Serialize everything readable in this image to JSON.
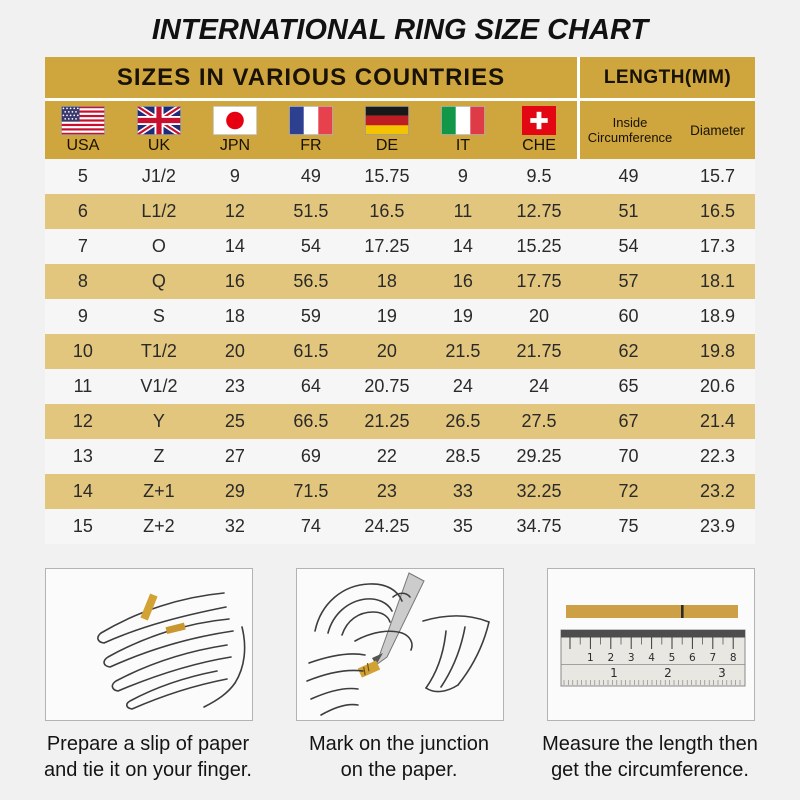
{
  "page": {
    "title": "INTERNATIONAL RING SIZE CHART"
  },
  "table": {
    "section_headers": {
      "left": "SIZES IN VARIOUS COUNTRIES",
      "right": "LENGTH(MM)"
    },
    "columns": [
      {
        "code": "USA",
        "flag": "usa-flag-icon"
      },
      {
        "code": "UK",
        "flag": "uk-flag-icon"
      },
      {
        "code": "JPN",
        "flag": "japan-flag-icon"
      },
      {
        "code": "FR",
        "flag": "france-flag-icon"
      },
      {
        "code": "DE",
        "flag": "germany-flag-icon"
      },
      {
        "code": "IT",
        "flag": "italy-flag-icon"
      },
      {
        "code": "CHE",
        "flag": "switzerland-flag-icon"
      }
    ],
    "length_columns": [
      "Inside Circumference",
      "Diameter"
    ],
    "rows": [
      [
        "5",
        "J1/2",
        "9",
        "49",
        "15.75",
        "9",
        "9.5",
        "49",
        "15.7"
      ],
      [
        "6",
        "L1/2",
        "12",
        "51.5",
        "16.5",
        "11",
        "12.75",
        "51",
        "16.5"
      ],
      [
        "7",
        "O",
        "14",
        "54",
        "17.25",
        "14",
        "15.25",
        "54",
        "17.3"
      ],
      [
        "8",
        "Q",
        "16",
        "56.5",
        "18",
        "16",
        "17.75",
        "57",
        "18.1"
      ],
      [
        "9",
        "S",
        "18",
        "59",
        "19",
        "19",
        "20",
        "60",
        "18.9"
      ],
      [
        "10",
        "T1/2",
        "20",
        "61.5",
        "20",
        "21.5",
        "21.75",
        "62",
        "19.8"
      ],
      [
        "11",
        "V1/2",
        "23",
        "64",
        "20.75",
        "24",
        "24",
        "65",
        "20.6"
      ],
      [
        "12",
        "Y",
        "25",
        "66.5",
        "21.25",
        "26.5",
        "27.5",
        "67",
        "21.4"
      ],
      [
        "13",
        "Z",
        "27",
        "69",
        "22",
        "28.5",
        "29.25",
        "70",
        "22.3"
      ],
      [
        "14",
        "Z+1",
        "29",
        "71.5",
        "23",
        "33",
        "32.25",
        "72",
        "23.2"
      ],
      [
        "15",
        "Z+2",
        "32",
        "74",
        "24.25",
        "35",
        "34.75",
        "75",
        "23.9"
      ]
    ]
  },
  "instructions": [
    {
      "illustration": "hand-with-paper-illustration",
      "caption_line1": "Prepare a slip of paper",
      "caption_line2": "and tie it on your finger."
    },
    {
      "illustration": "mark-junction-illustration",
      "caption_line1": "Mark on the junction",
      "caption_line2": "on the paper."
    },
    {
      "illustration": "ruler-measure-illustration",
      "caption_line1": "Measure the length then",
      "caption_line2": "get the circumference."
    }
  ],
  "ruler": {
    "cm_ticks": [
      "1",
      "2",
      "3",
      "4",
      "5",
      "6",
      "7",
      "8"
    ],
    "inch_ticks": [
      "1",
      "2",
      "3"
    ]
  },
  "colors": {
    "header_gold": "#CFA53D",
    "row_tan": "#E2C67D",
    "row_white": "#f6f6f6",
    "page_background": "#f1f1f1",
    "paper_strip_gold": "#CDA045",
    "text": "#1c1c1c"
  }
}
